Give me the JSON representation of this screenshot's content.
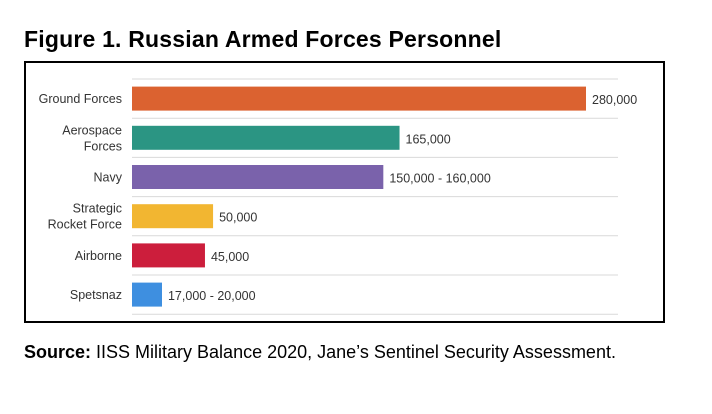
{
  "title": "Figure 1. Russian Armed Forces Personnel",
  "source_label": "Source:",
  "source_text": " IISS Military Balance 2020, Jane’s Sentinel Security Assessment.",
  "chart_data": {
    "type": "bar",
    "orientation": "horizontal",
    "title": "",
    "xlabel": "",
    "ylabel": "",
    "xlim": [
      0,
      280000
    ],
    "grid": true,
    "categories": [
      [
        "Ground Forces"
      ],
      [
        "Aerospace",
        "Forces"
      ],
      [
        "Navy"
      ],
      [
        "Strategic",
        "Rocket Force"
      ],
      [
        "Airborne"
      ],
      [
        "Spetsnaz"
      ]
    ],
    "values": [
      280000,
      165000,
      155000,
      50000,
      45000,
      18500
    ],
    "data_labels": [
      "280,000",
      "165,000",
      "150,000 - 160,000",
      "50,000",
      "45,000",
      "17,000 - 20,000"
    ],
    "colors": [
      "#db6230",
      "#2b9583",
      "#7a62ab",
      "#f2b631",
      "#cc1e3c",
      "#3e8fe0"
    ]
  }
}
